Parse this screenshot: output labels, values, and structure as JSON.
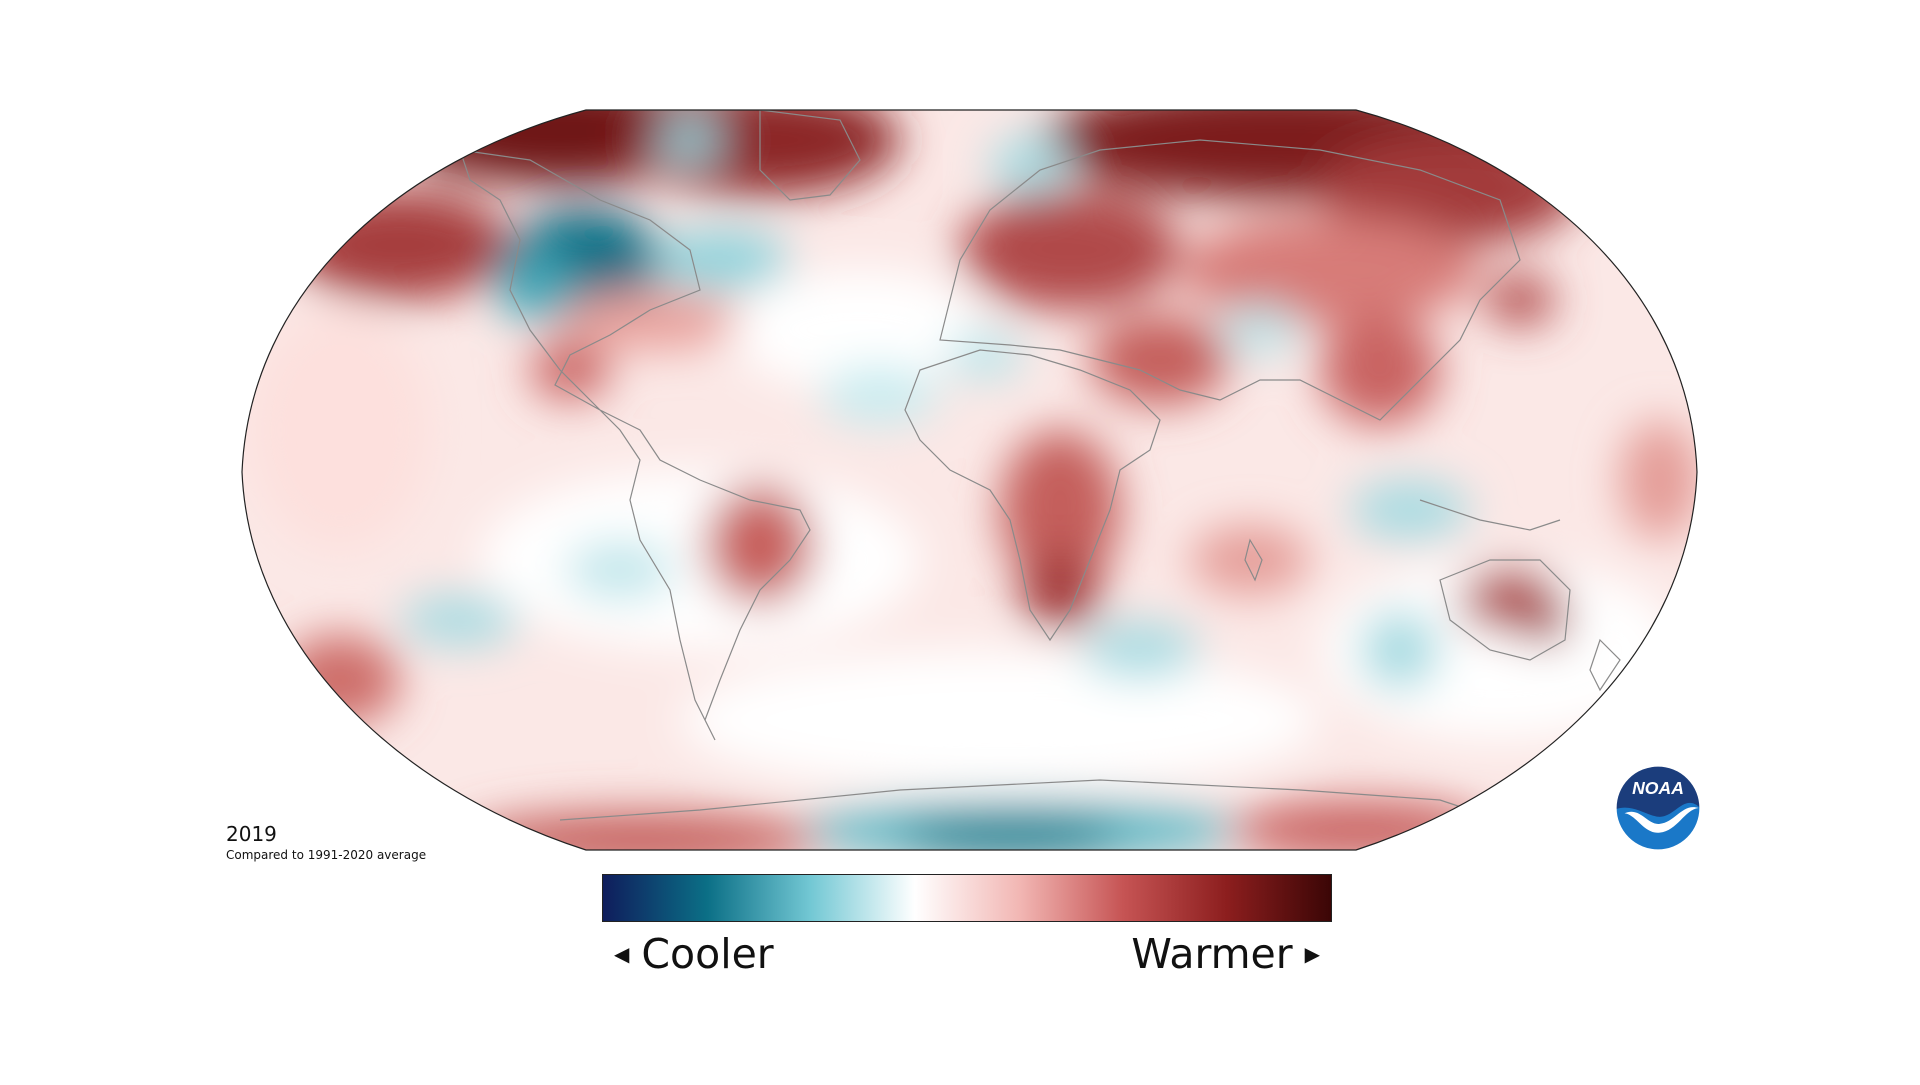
{
  "year": "2019",
  "baseline": "Compared to 1991-2020 average",
  "legend": {
    "cool_label": "Cooler",
    "warm_label": "Warmer",
    "left_arrow": "◀",
    "right_arrow": "▶",
    "gradient_colors": [
      "#0f1d5c",
      "#0b6f86",
      "#73c8d4",
      "#ffffff",
      "#f2b7b4",
      "#c65454",
      "#8c1e1e",
      "#3b0606"
    ]
  },
  "map": {
    "projection": "Robinson",
    "ocean_base_color": "#fbe8e6",
    "outline_color": "#222222",
    "coastline_color": "#8a8a8a"
  },
  "logo": {
    "text": "NOAA",
    "color_top": "#1b3d7c",
    "color_bottom": "#1a78c8"
  }
}
